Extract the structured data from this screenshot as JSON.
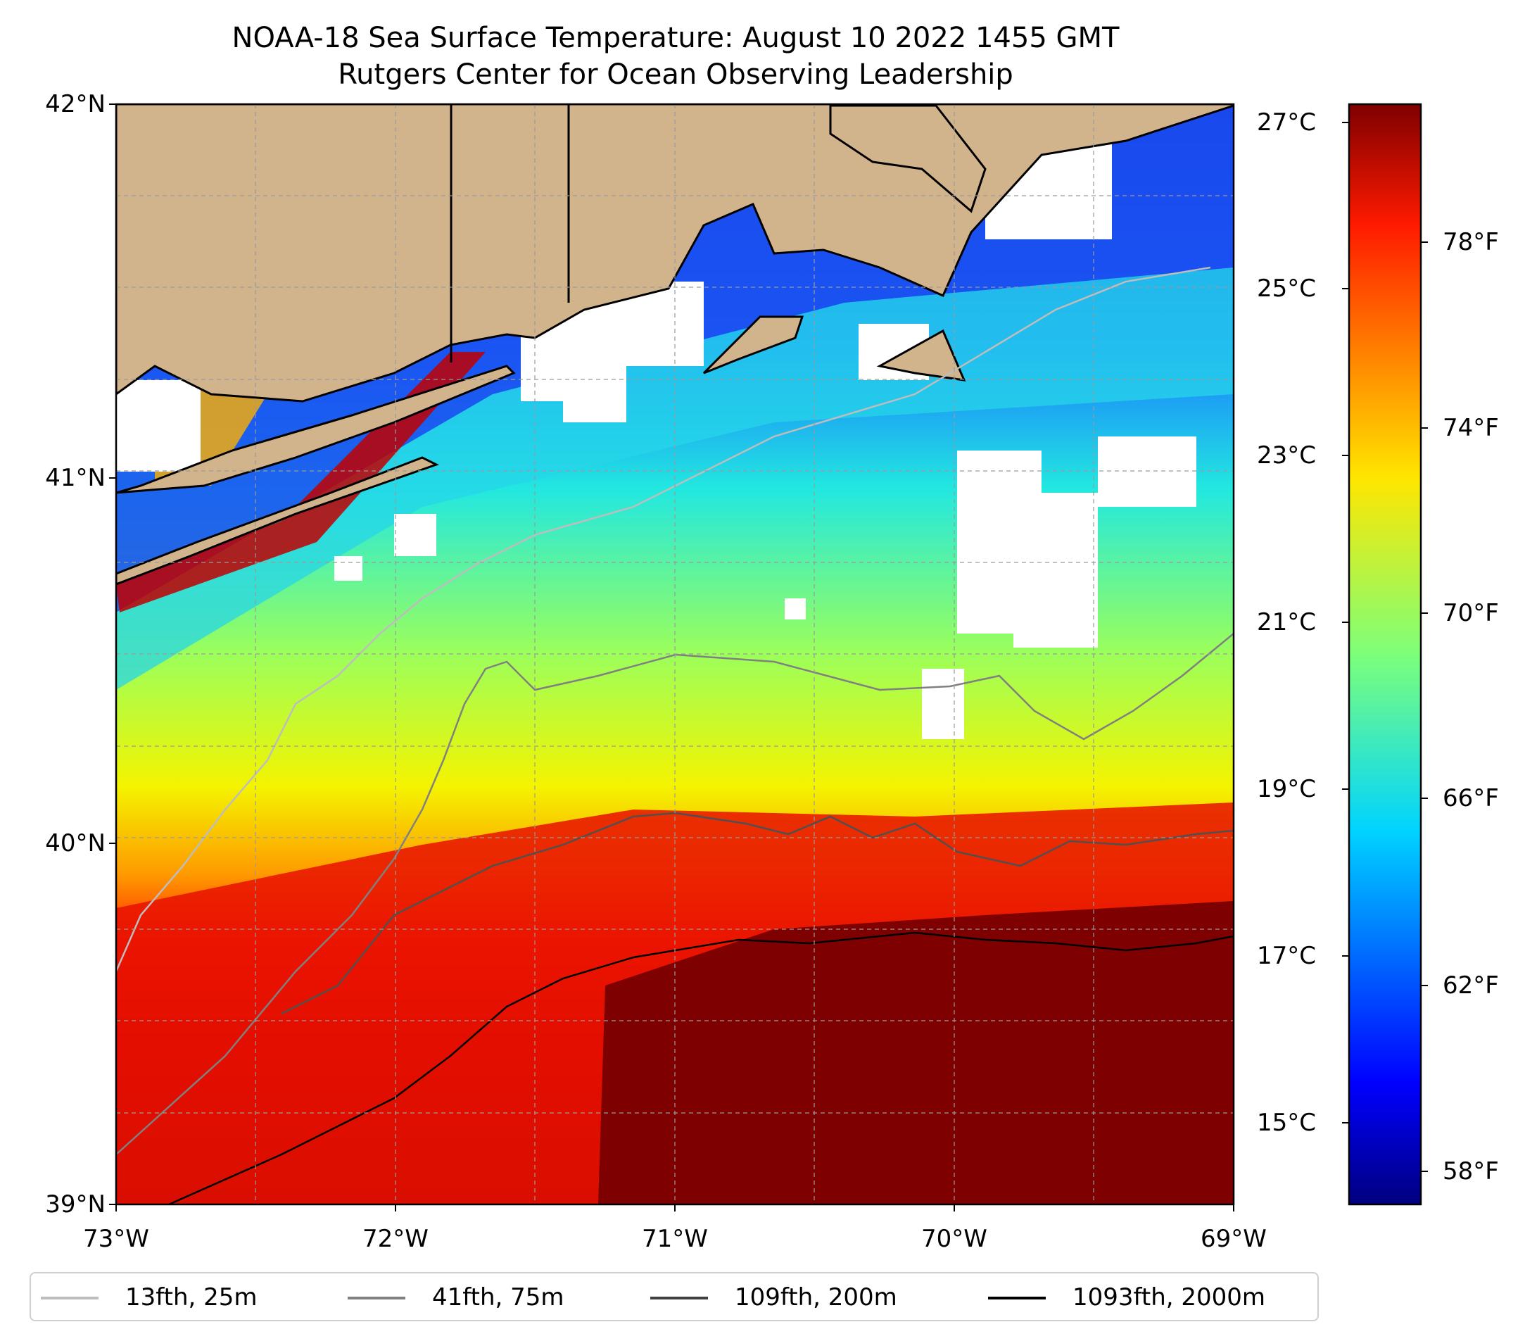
{
  "title": {
    "line1": "NOAA-18 Sea Surface Temperature: August 10 2022 1455 GMT",
    "line2": "Rutgers Center for Ocean Observing Leadership"
  },
  "map": {
    "lat_ticks": [
      "42°N",
      "41°N",
      "40°N",
      "39°N"
    ],
    "lon_ticks": [
      "73°W",
      "72°W",
      "71°W",
      "70°W",
      "69°W"
    ],
    "extent": {
      "lon": [
        -73,
        -69
      ],
      "lat": [
        39,
        42
      ]
    },
    "land_color": "#d2b48c",
    "cloud_color": "#ffffff"
  },
  "colorbar": {
    "celsius_ticks": [
      "27°C",
      "25°C",
      "23°C",
      "21°C",
      "19°C",
      "17°C",
      "15°C"
    ],
    "fahrenheit_ticks": [
      "78°F",
      "74°F",
      "70°F",
      "66°F",
      "62°F",
      "58°F"
    ],
    "colormap": "jet",
    "range_c": [
      14.2,
      27.4
    ]
  },
  "legend": {
    "items": [
      {
        "label": "13fth, 25m",
        "color": "#bdbdbd"
      },
      {
        "label": "41fth, 75m",
        "color": "#808080"
      },
      {
        "label": "109fth, 200m",
        "color": "#404040"
      },
      {
        "label": "1093fth, 2000m",
        "color": "#000000"
      }
    ]
  }
}
